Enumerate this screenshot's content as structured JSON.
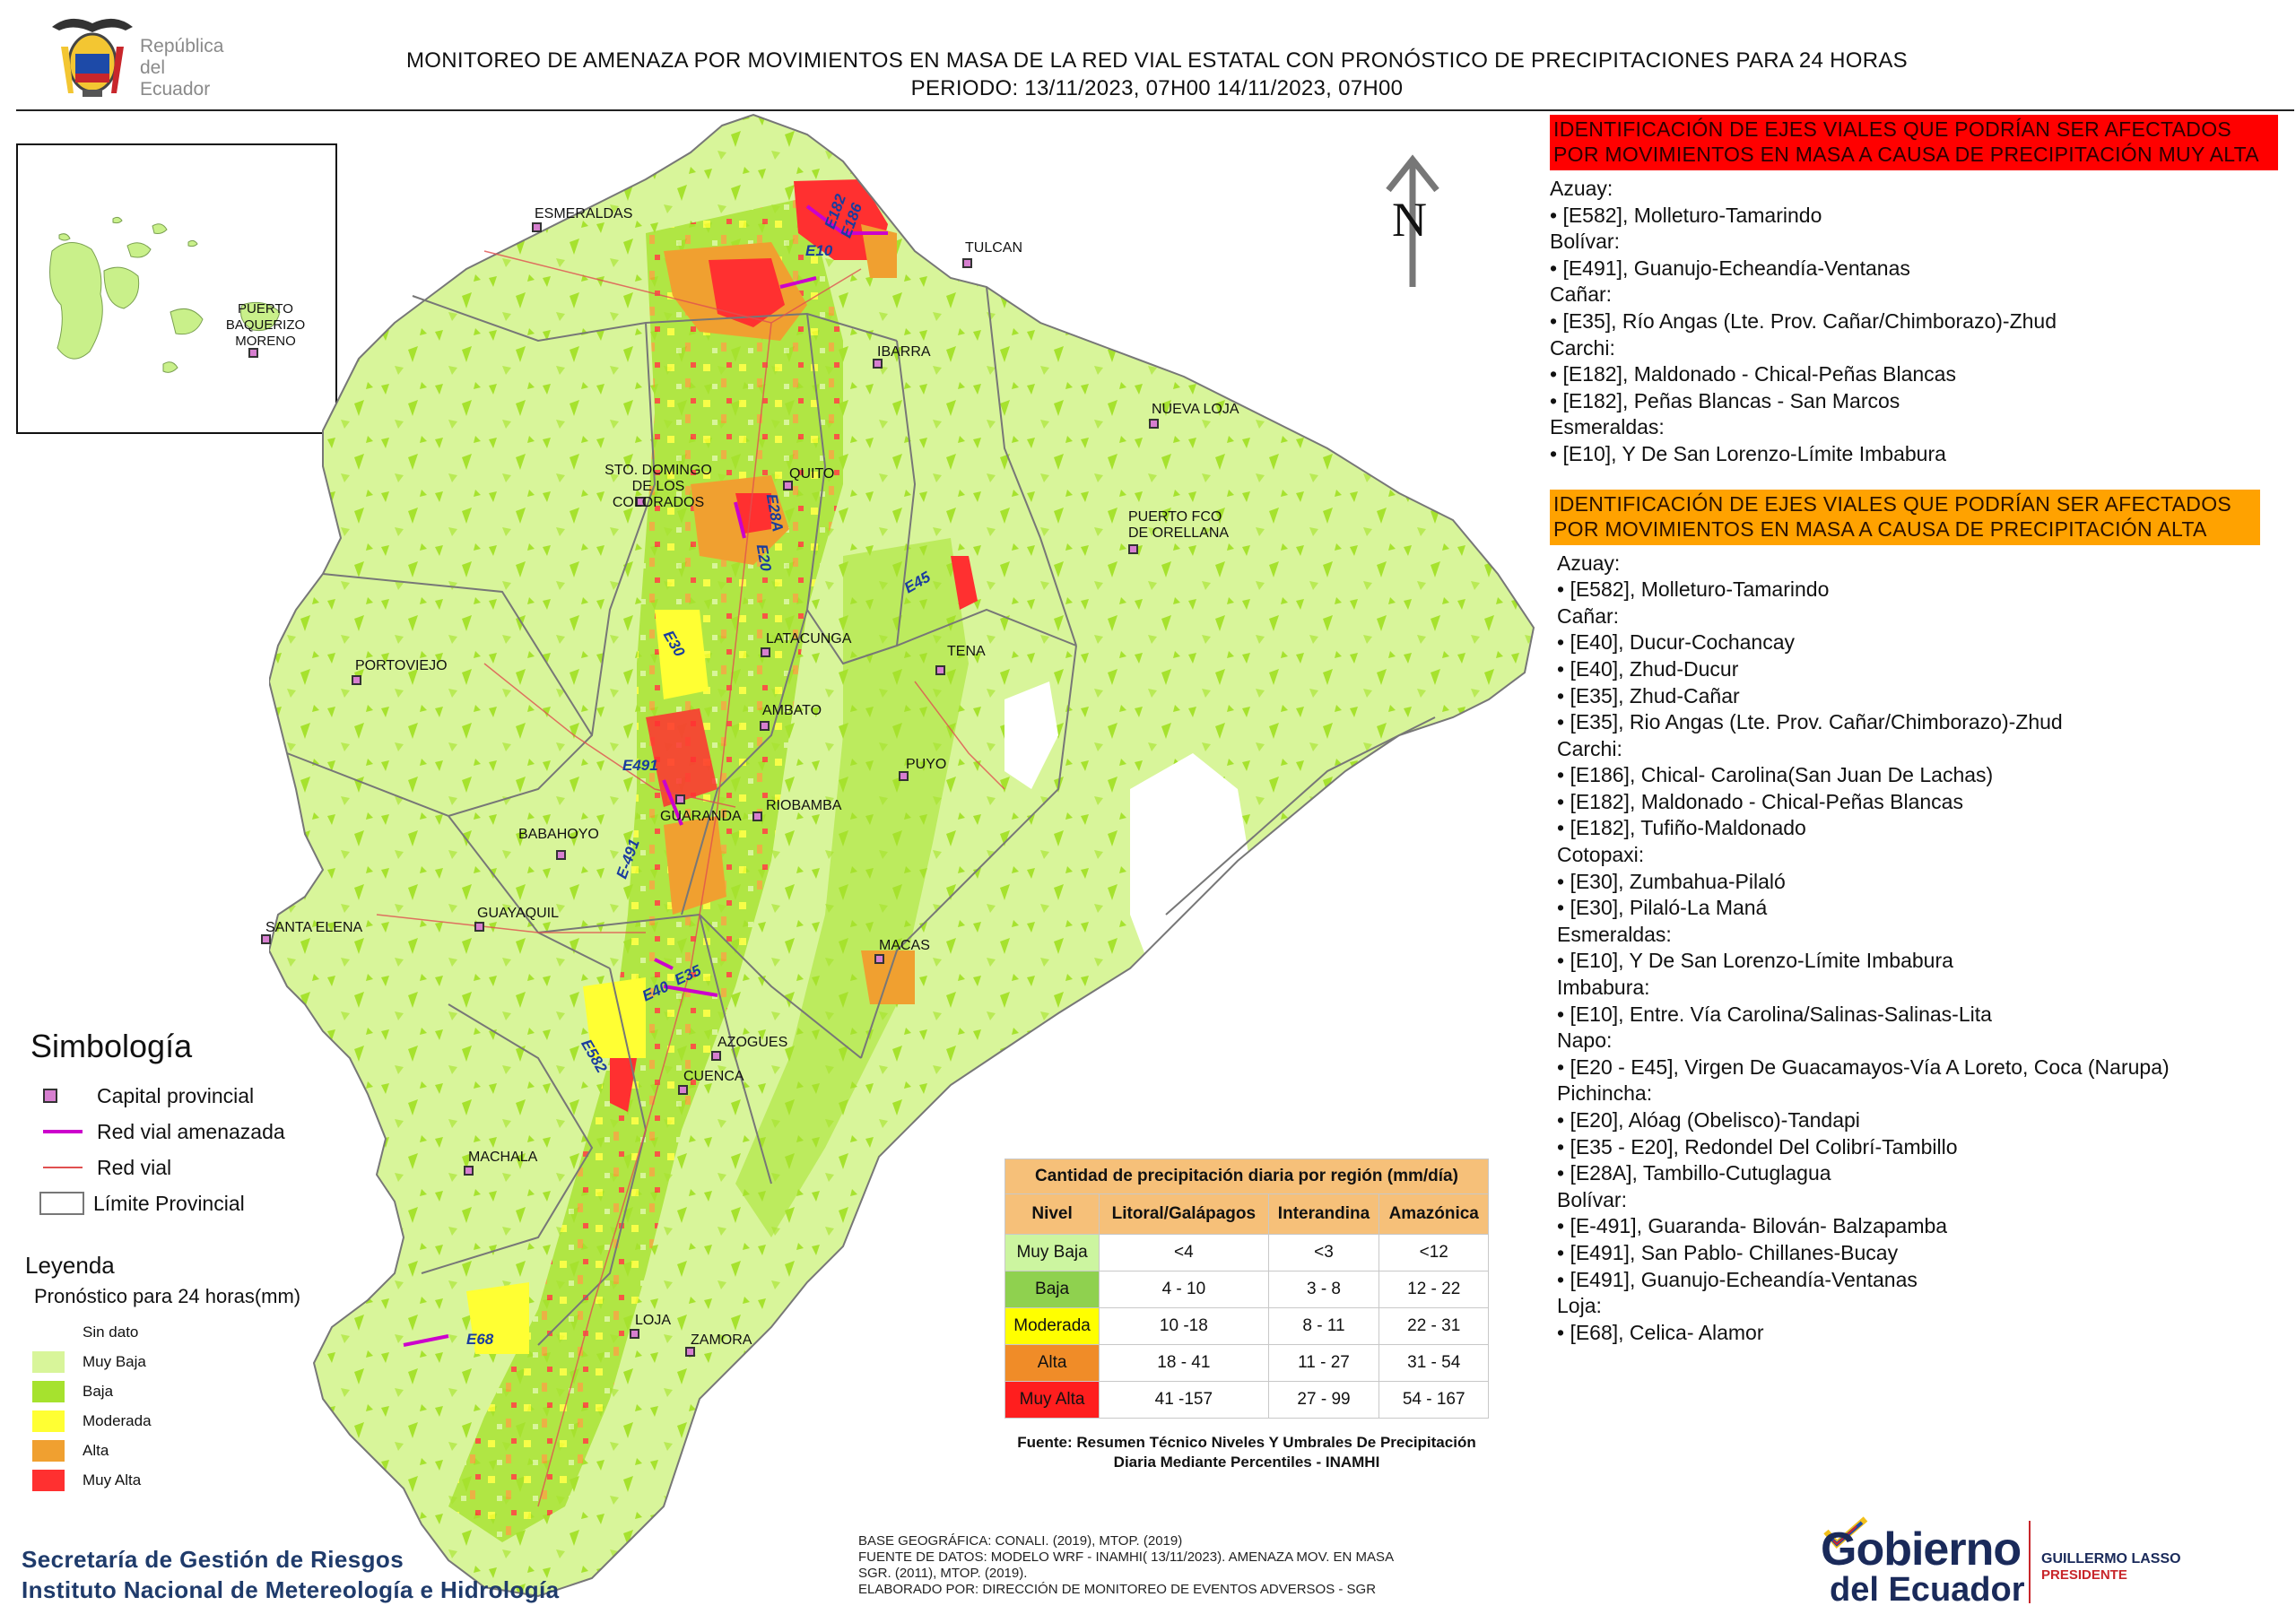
{
  "header": {
    "title_line1": "MONITOREO DE AMENAZA POR MOVIMIENTOS EN MASA DE LA RED VIAL  ESTATAL  CON PRONÓSTICO  DE  PRECIPITACIONES PARA 24 HORAS",
    "title_line2": "PERIODO: 13/11/2023, 07H00 14/11/2023, 07H00"
  },
  "logo_republica": {
    "line1": "República",
    "line2": "del Ecuador"
  },
  "map": {
    "inset_label": "PUERTO BAQUERIZO MORENO",
    "north_label": "N",
    "cities": [
      {
        "name": "ESMERALDAS"
      },
      {
        "name": "TULCAN"
      },
      {
        "name": "IBARRA"
      },
      {
        "name": "NUEVA LOJA"
      },
      {
        "name": "STO. DOMINGO DE LOS COLORADOS"
      },
      {
        "name": "QUITO"
      },
      {
        "name": "PUERTO FCO DE ORELLANA"
      },
      {
        "name": "PORTOVIEJO"
      },
      {
        "name": "LATACUNGA"
      },
      {
        "name": "TENA"
      },
      {
        "name": "AMBATO"
      },
      {
        "name": "PUYO"
      },
      {
        "name": "GUARANDA"
      },
      {
        "name": "RIOBAMBA"
      },
      {
        "name": "BABAHOYO"
      },
      {
        "name": "SANTA ELENA"
      },
      {
        "name": "GUAYAQUIL"
      },
      {
        "name": "MACAS"
      },
      {
        "name": "AZOGUES"
      },
      {
        "name": "CUENCA"
      },
      {
        "name": "MACHALA"
      },
      {
        "name": "LOJA"
      },
      {
        "name": "ZAMORA"
      }
    ],
    "road_labels": [
      "E182",
      "E186",
      "E10",
      "E28A",
      "E20",
      "E45",
      "E30",
      "E491",
      "E-491",
      "E40",
      "E35",
      "E582",
      "E68"
    ],
    "colors": {
      "muy_baja": "#d8f59a",
      "baja": "#a6e22e",
      "moderada": "#ffff33",
      "alta": "#f0a030",
      "muy_alta": "#ff3030",
      "road_threat": "#cc00cc"
    }
  },
  "symbology": {
    "title": "Simbología",
    "items": [
      "Capital provincial",
      "Red vial amenazada",
      "Red vial",
      "Límite Provincial"
    ]
  },
  "leyenda": {
    "title": "Leyenda",
    "subtitle": "Pronóstico para 24 horas(mm)",
    "items": [
      {
        "label": "Sin dato",
        "color": "#ffffff"
      },
      {
        "label": "Muy Baja",
        "color": "#d8f59a"
      },
      {
        "label": "Baja",
        "color": "#a6e22e"
      },
      {
        "label": "Moderada",
        "color": "#ffff33"
      },
      {
        "label": "Alta",
        "color": "#f0a030"
      },
      {
        "label": "Muy Alta",
        "color": "#ff3030"
      }
    ]
  },
  "precip_table": {
    "caption": "Cantidad de precipitación diaria por región (mm/día)",
    "headers": [
      "Nivel",
      "Litoral/Galápagos",
      "Interandina",
      "Amazónica"
    ],
    "rows": [
      {
        "nivel": "Muy Baja",
        "color": "#ccf5a0",
        "litoral": "<4",
        "interandina": "<3",
        "amazonica": "<12"
      },
      {
        "nivel": "Baja",
        "color": "#8fd14f",
        "litoral": "4 - 10",
        "interandina": "3 - 8",
        "amazonica": "12 - 22"
      },
      {
        "nivel": "Moderada",
        "color": "#ffff00",
        "litoral": "10 -18",
        "interandina": "8 - 11",
        "amazonica": "22 - 31"
      },
      {
        "nivel": "Alta",
        "color": "#f08c28",
        "litoral": "18 - 41",
        "interandina": "11 - 27",
        "amazonica": "31 - 54"
      },
      {
        "nivel": "Muy Alta",
        "color": "#ff1e1e",
        "litoral": "41 -157",
        "interandina": "27 - 99",
        "amazonica": "54 - 167"
      }
    ],
    "source": "Fuente: Resumen Técnico Niveles Y Umbrales De Precipitación Diaria Mediante Percentiles - INAMHI"
  },
  "alerts": {
    "muy_alta": {
      "banner": "IDENTIFICACIÓN DE EJES VIALES QUE PODRÍAN SER AFECTADOS POR MOVIMIENTOS EN MASA A CAUSA DE PRECIPITACIÓN MUY ALTA",
      "groups": [
        {
          "province": "Azuay:",
          "roads": [
            "• [E582], Molleturo-Tamarindo"
          ]
        },
        {
          "province": "Bolívar:",
          "roads": [
            "• [E491], Guanujo-Echeandía-Ventanas"
          ]
        },
        {
          "province": "Cañar:",
          "roads": [
            "• [E35], Río Angas (Lte. Prov. Cañar/Chimborazo)-Zhud"
          ]
        },
        {
          "province": "Carchi:",
          "roads": [
            "• [E182], Maldonado - Chical-Peñas Blancas",
            "• [E182], Peñas Blancas - San Marcos"
          ]
        },
        {
          "province": "Esmeraldas:",
          "roads": [
            "• [E10], Y De San Lorenzo-Límite Imbabura"
          ]
        }
      ]
    },
    "alta": {
      "banner": "IDENTIFICACIÓN DE EJES VIALES QUE PODRÍAN SER AFECTADOS POR MOVIMIENTOS EN MASA A CAUSA DE PRECIPITACIÓN  ALTA",
      "groups": [
        {
          "province": "Azuay:",
          "roads": [
            "• [E582], Molleturo-Tamarindo"
          ]
        },
        {
          "province": "Cañar:",
          "roads": [
            "• [E40], Ducur-Cochancay",
            "• [E40], Zhud-Ducur",
            "• [E35], Zhud-Cañar",
            "• [E35], Rio Angas (Lte. Prov. Cañar/Chimborazo)-Zhud"
          ]
        },
        {
          "province": "Carchi:",
          "roads": [
            "• [E186], Chical- Carolina(San Juan De Lachas)",
            "• [E182], Maldonado - Chical-Peñas Blancas",
            "• [E182], Tufiño-Maldonado"
          ]
        },
        {
          "province": "Cotopaxi:",
          "roads": [
            "• [E30], Zumbahua-Pilaló",
            "• [E30], Pilaló-La Maná"
          ]
        },
        {
          "province": "Esmeraldas:",
          "roads": [
            "• [E10], Y De San Lorenzo-Límite Imbabura"
          ]
        },
        {
          "province": "Imbabura:",
          "roads": [
            "• [E10], Entre. Vía Carolina/Salinas-Salinas-Lita"
          ]
        },
        {
          "province": "Napo:",
          "roads": [
            "• [E20 - E45], Virgen De Guacamayos-Vía A Loreto, Coca (Narupa)"
          ]
        },
        {
          "province": "Pichincha:",
          "roads": [
            "• [E20], Alóag (Obelisco)-Tandapi",
            "• [E35 - E20], Redondel Del Colibrí-Tambillo",
            "• [E28A], Tambillo-Cutuglagua"
          ]
        },
        {
          "province": "Bolívar:",
          "roads": [
            "• [E-491], Guaranda- Bilován- Balzapamba",
            "• [E491], San Pablo- Chillanes-Bucay",
            "• [E491], Guanujo-Echeandía-Ventanas"
          ]
        },
        {
          "province": "Loja:",
          "roads": [
            "• [E68], Celica- Alamor"
          ]
        }
      ]
    }
  },
  "credits": {
    "line1": "Secretaría de Gestión de Riesgos",
    "line2": "Instituto Nacional de Metereología e Hidrología"
  },
  "base_info": [
    "BASE GEOGRÁFICA: CONALI. (2019), MTOP. (2019)",
    "FUENTE DE DATOS: MODELO WRF - INAMHI( 13/11/2023).  AMENAZA MOV. EN MASA",
    "SGR. (2011), MTOP. (2019).",
    "ELABORADO POR: DIRECCIÓN DE MONITOREO DE EVENTOS ADVERSOS - SGR"
  ],
  "gobierno": {
    "word1": "Gobierno",
    "word2": "del Ecuador",
    "name": "GUILLERMO LASSO",
    "role": "PRESIDENTE"
  }
}
